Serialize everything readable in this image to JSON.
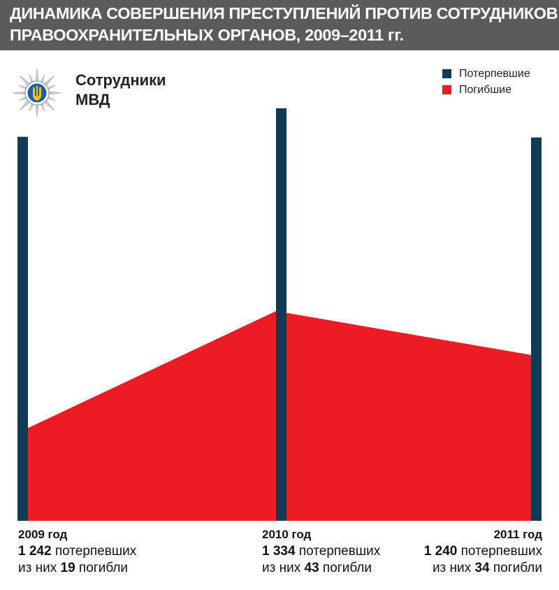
{
  "title": {
    "line1": "ДИНАМИКА СОВЕРШЕНИЯ ПРЕСТУПЛЕНИЙ ПРОТИВ СОТРУДНИКОВ",
    "line2": "ПРАВООХРАНИТЕЛЬНЫХ ОРГАНОВ, 2009–2011 гг."
  },
  "heading": {
    "line1": "Сотрудники",
    "line2": "МВД"
  },
  "emblem": {
    "icon": "police-star-trident-icon"
  },
  "legend": [
    {
      "label": "Потерпевшие",
      "color": "#0f3b55"
    },
    {
      "label": "Погибшие",
      "color": "#ed1c24"
    }
  ],
  "colors": {
    "injured": "#0f3b55",
    "killed": "#ed1c24",
    "title_bg": "#5b5b5b"
  },
  "chart_data": {
    "type": "area",
    "categories": [
      "2009",
      "2010",
      "2011"
    ],
    "series": [
      {
        "name": "Потерпевшие",
        "type": "bar",
        "values": [
          1242,
          1334,
          1240
        ]
      },
      {
        "name": "Погибшие",
        "type": "area",
        "values": [
          19,
          43,
          34
        ]
      }
    ],
    "ylim_injured": [
      0,
      1334
    ],
    "ylim_killed": [
      0,
      43
    ]
  },
  "years": [
    {
      "year_label": "2009 год",
      "injured": "1 242",
      "injured_text": "потерпевших",
      "prefix": "из них",
      "killed": "19",
      "killed_text": "погибли"
    },
    {
      "year_label": "2010 год",
      "injured": "1 334",
      "injured_text": "потерпевших",
      "prefix": "из них",
      "killed": "43",
      "killed_text": "погибли"
    },
    {
      "year_label": "2011 год",
      "injured": "1 240",
      "injured_text": "потерпевших",
      "prefix": "из них",
      "killed": "34",
      "killed_text": "погибли"
    }
  ]
}
